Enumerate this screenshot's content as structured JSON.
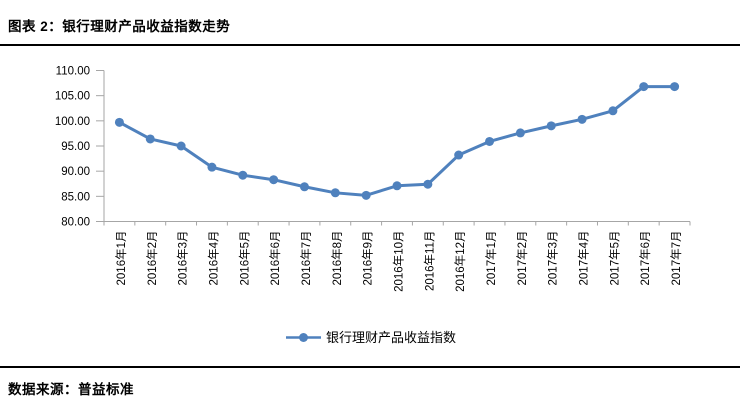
{
  "page": {
    "header": {
      "title": "图表 2：银行理财产品收益指数走势"
    },
    "footer": {
      "text": "数据来源：普益标准"
    }
  },
  "chart_data": {
    "type": "line",
    "title": "图表 2：银行理财产品收益指数走势",
    "categories": [
      "2016年1月",
      "2016年2月",
      "2016年3月",
      "2016年4月",
      "2016年5月",
      "2016年6月",
      "2016年7月",
      "2016年8月",
      "2016年9月",
      "2016年10月",
      "2016年11月",
      "2016年12月",
      "2017年1月",
      "2017年2月",
      "2017年3月",
      "2017年4月",
      "2017年5月",
      "2017年6月",
      "2017年7月"
    ],
    "series": [
      {
        "name": "银行理财产品收益指数",
        "values": [
          99.7,
          96.4,
          95.0,
          90.8,
          89.2,
          88.3,
          86.9,
          85.7,
          85.2,
          87.1,
          87.4,
          93.2,
          95.9,
          97.6,
          99.0,
          100.3,
          102.0,
          106.8,
          106.8
        ]
      }
    ],
    "xlabel": "",
    "ylabel": "",
    "ylim": [
      80,
      110
    ],
    "ytick_step": 5,
    "ytick_decimals": 2,
    "grid": false,
    "legend_position": "bottom-center",
    "marker": "circle",
    "line_color": "#4F81BD",
    "axis_color": "#A6A6A6",
    "text_color": "#000000"
  }
}
